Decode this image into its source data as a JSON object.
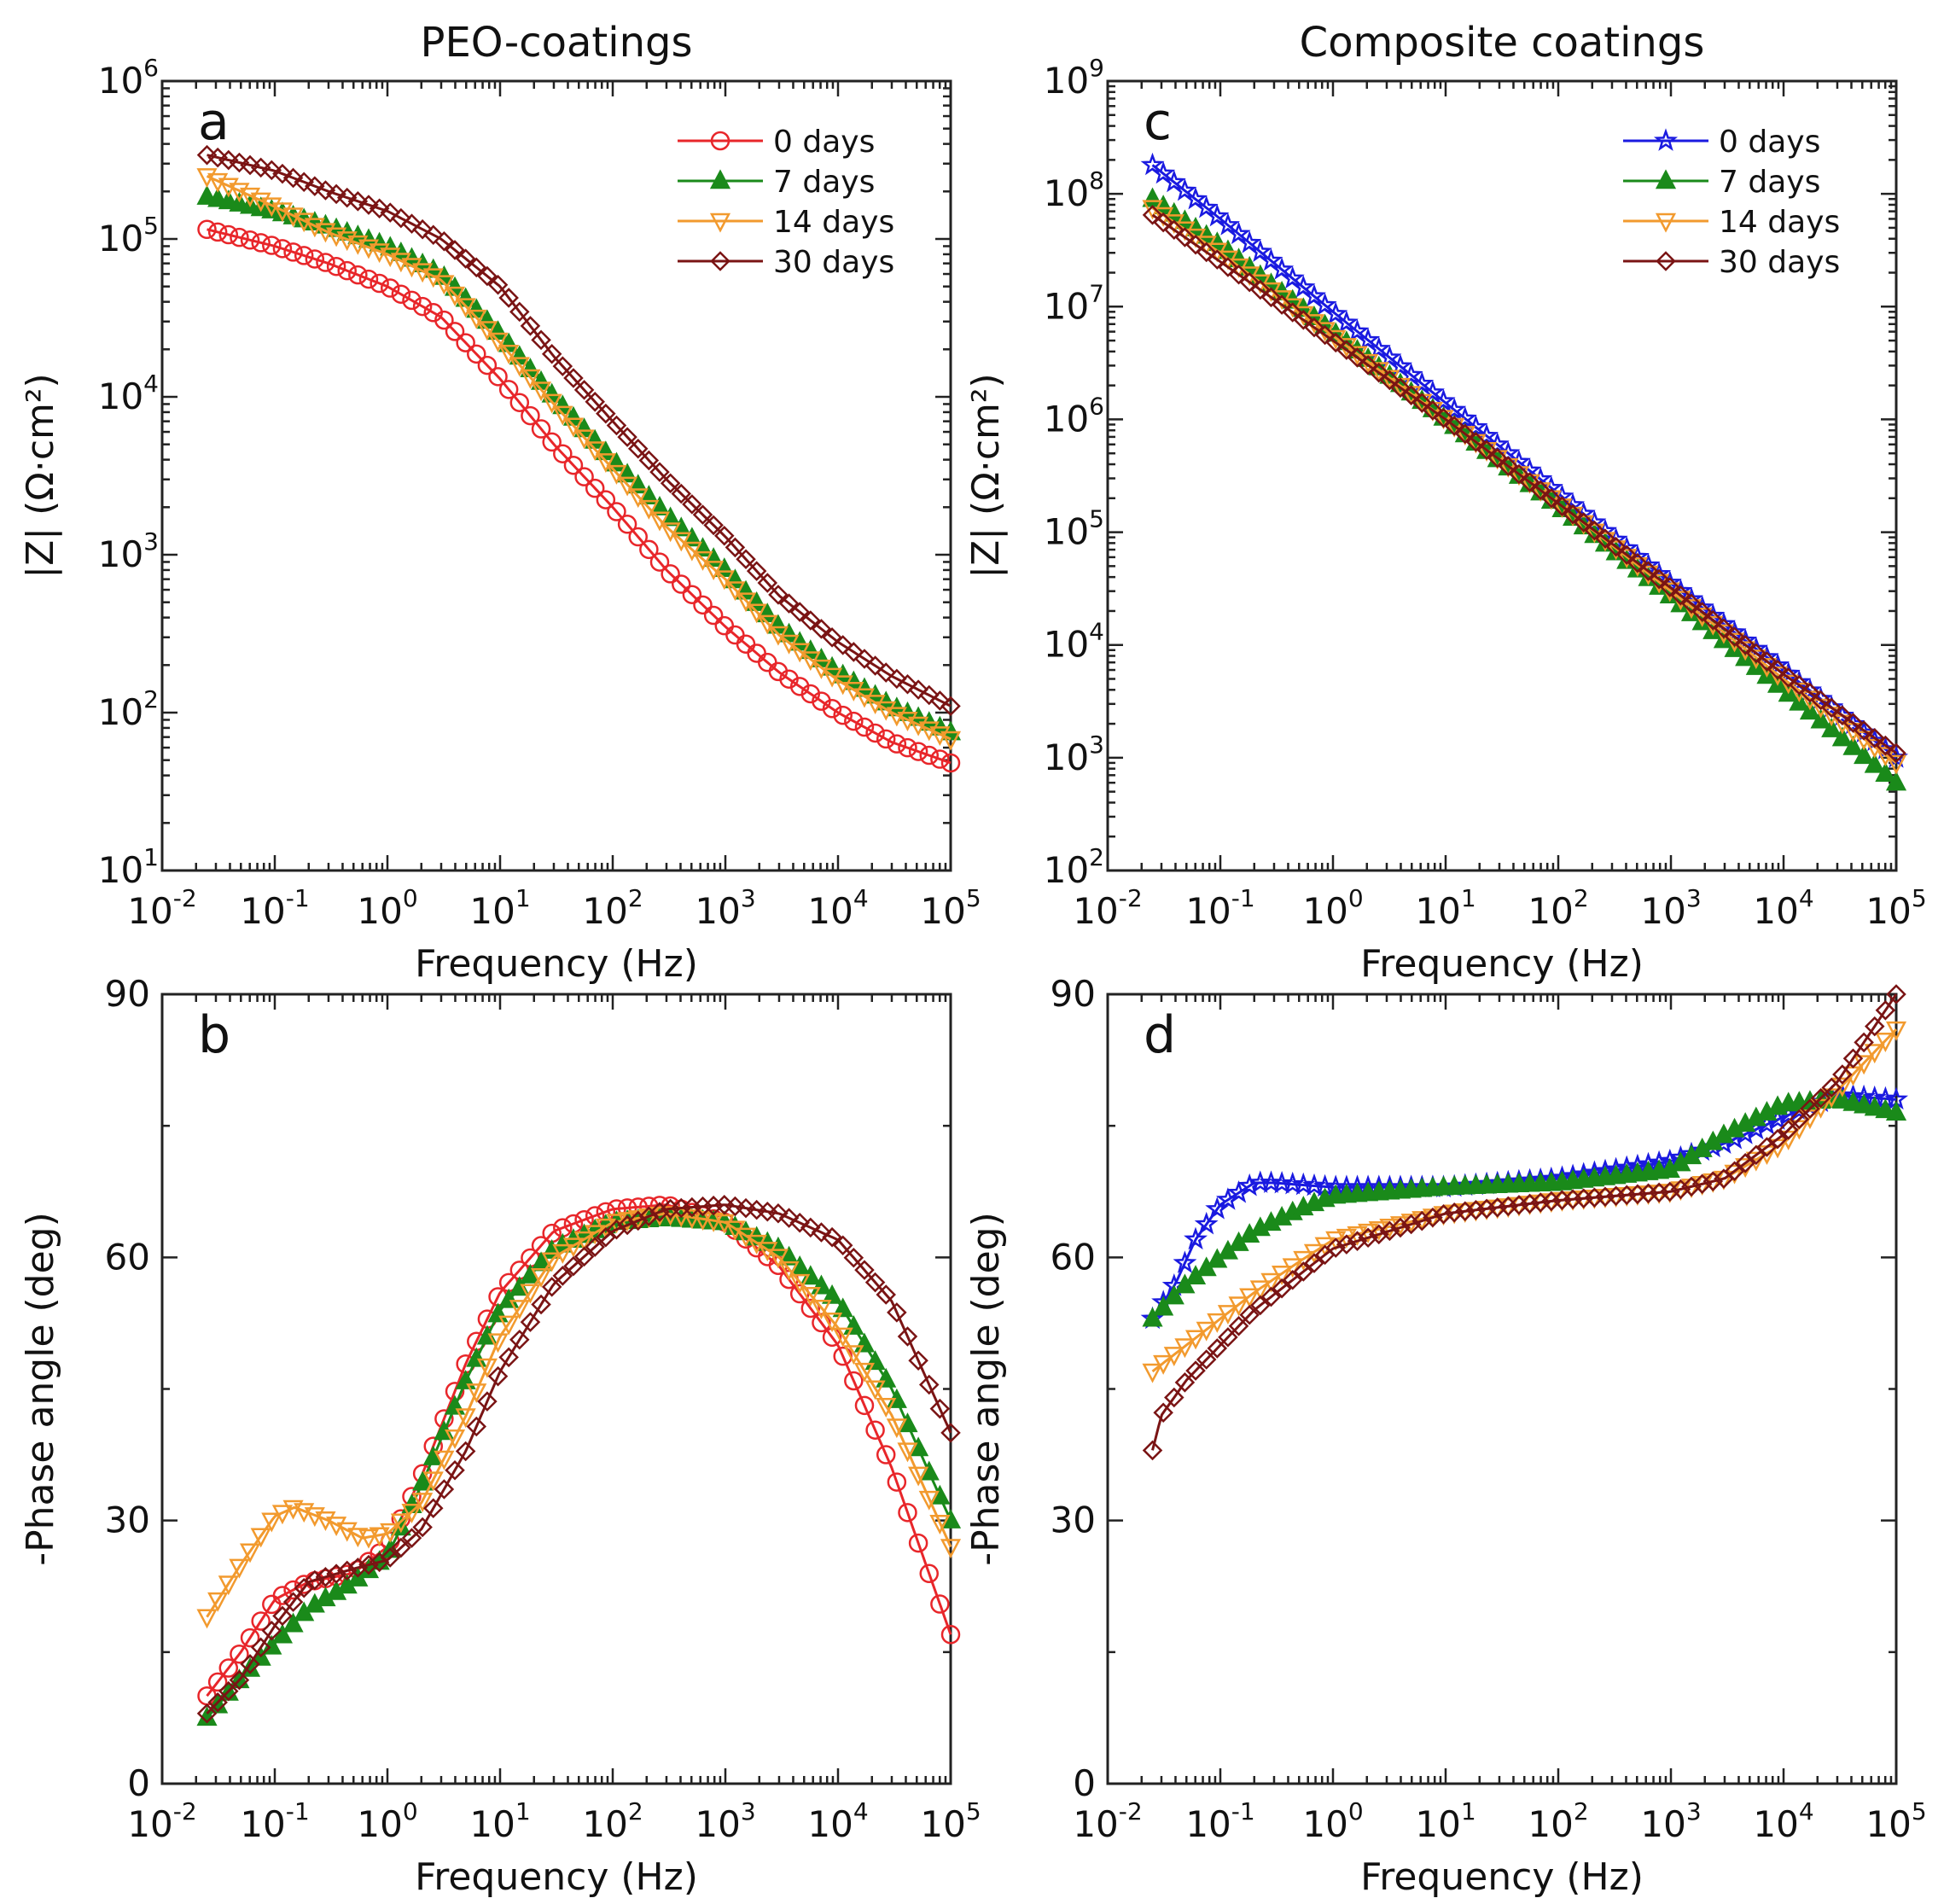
{
  "figure": {
    "titles": {
      "left": "PEO-coatings",
      "right": "Composite coatings"
    }
  },
  "colors": {
    "0 days (PEO)": "#e8262a",
    "0 days (composite)": "#1a1ae0",
    "7 days": "#1a8a1a",
    "14 days": "#f29a2e",
    "30 days": "#7a1414",
    "axis": "#222222"
  },
  "chart_data": [
    {
      "panel": "a",
      "type": "line",
      "title": "PEO-coatings",
      "xlabel": "Frequency (Hz)",
      "ylabel": "|Z| (Ω·cm²)",
      "xscale": "log",
      "yscale": "log",
      "xlim": [
        0.01,
        100000
      ],
      "ylim": [
        10,
        1000000
      ],
      "xticks": [
        {
          "base": "10",
          "exp": "-2"
        },
        {
          "base": "10",
          "exp": "-1"
        },
        {
          "base": "10",
          "exp": "0"
        },
        {
          "base": "10",
          "exp": "1"
        },
        {
          "base": "10",
          "exp": "2"
        },
        {
          "base": "10",
          "exp": "3"
        },
        {
          "base": "10",
          "exp": "4"
        },
        {
          "base": "10",
          "exp": "5"
        }
      ],
      "yticks": [
        {
          "base": "10",
          "exp": "1"
        },
        {
          "base": "10",
          "exp": "2"
        },
        {
          "base": "10",
          "exp": "3"
        },
        {
          "base": "10",
          "exp": "4"
        },
        {
          "base": "10",
          "exp": "5"
        },
        {
          "base": "10",
          "exp": "6"
        }
      ],
      "legend": "top-right",
      "series": [
        {
          "name": "0 days",
          "color": "#e8262a",
          "marker": "circle-open",
          "x": [
            0.025,
            0.1,
            0.3,
            1,
            3,
            10,
            30,
            100,
            300,
            1000,
            3000,
            10000,
            30000,
            100000
          ],
          "y": [
            115000,
            90000,
            70000,
            50000,
            32000,
            13000,
            5000,
            2000,
            800,
            350,
            180,
            100,
            65,
            48
          ]
        },
        {
          "name": "7 days",
          "color": "#1a8a1a",
          "marker": "triangle-up-filled",
          "x": [
            0.025,
            0.1,
            0.3,
            1,
            3,
            10,
            30,
            100,
            300,
            1000,
            3000,
            10000,
            30000,
            100000
          ],
          "y": [
            185000,
            150000,
            120000,
            90000,
            60000,
            25000,
            10000,
            4000,
            1800,
            800,
            350,
            180,
            110,
            75
          ]
        },
        {
          "name": "14 days",
          "color": "#f29a2e",
          "marker": "triangle-down-open",
          "x": [
            0.025,
            0.1,
            0.3,
            1,
            3,
            10,
            30,
            100,
            300,
            1000,
            3000,
            10000,
            30000,
            100000
          ],
          "y": [
            250000,
            160000,
            110000,
            80000,
            55000,
            22000,
            9000,
            3500,
            1500,
            700,
            310,
            160,
            100,
            68
          ]
        },
        {
          "name": "30 days",
          "color": "#7a1414",
          "marker": "diamond-open",
          "x": [
            0.025,
            0.1,
            0.3,
            1,
            3,
            10,
            30,
            100,
            300,
            1000,
            3000,
            10000,
            30000,
            100000
          ],
          "y": [
            340000,
            270000,
            200000,
            150000,
            100000,
            50000,
            18000,
            7000,
            3000,
            1300,
            550,
            280,
            170,
            110
          ]
        }
      ]
    },
    {
      "panel": "b",
      "type": "line",
      "xlabel": "Frequency (Hz)",
      "ylabel": "-Phase angle (deg)",
      "xscale": "log",
      "yscale": "linear",
      "xlim": [
        0.01,
        100000
      ],
      "ylim": [
        0,
        90
      ],
      "xticks": [
        {
          "base": "10",
          "exp": "-2"
        },
        {
          "base": "10",
          "exp": "-1"
        },
        {
          "base": "10",
          "exp": "0"
        },
        {
          "base": "10",
          "exp": "1"
        },
        {
          "base": "10",
          "exp": "2"
        },
        {
          "base": "10",
          "exp": "3"
        },
        {
          "base": "10",
          "exp": "4"
        },
        {
          "base": "10",
          "exp": "5"
        }
      ],
      "yticks": [
        {
          "base": "0",
          "exp": ""
        },
        {
          "base": "30",
          "exp": ""
        },
        {
          "base": "60",
          "exp": ""
        },
        {
          "base": "90",
          "exp": ""
        }
      ],
      "series": [
        {
          "name": "0 days",
          "color": "#e8262a",
          "marker": "circle-open",
          "x": [
            0.025,
            0.05,
            0.1,
            0.2,
            0.5,
            1,
            2,
            5,
            10,
            30,
            100,
            300,
            1000,
            3000,
            10000,
            30000,
            100000
          ],
          "y": [
            10,
            15,
            21,
            23,
            24,
            27,
            35,
            48,
            56,
            63,
            65.5,
            66,
            64,
            59,
            50,
            36,
            17
          ]
        },
        {
          "name": "7 days",
          "color": "#1a8a1a",
          "marker": "triangle-up-filled",
          "x": [
            0.025,
            0.05,
            0.1,
            0.2,
            0.5,
            1,
            2,
            5,
            10,
            30,
            100,
            300,
            1000,
            3000,
            10000,
            30000,
            100000
          ],
          "y": [
            7.5,
            12,
            16,
            20,
            23,
            26,
            34,
            46,
            54,
            61,
            64,
            64.5,
            64,
            61,
            55,
            45,
            30
          ]
        },
        {
          "name": "14 days",
          "color": "#f29a2e",
          "marker": "triangle-down-open",
          "x": [
            0.025,
            0.05,
            0.1,
            0.15,
            0.3,
            0.6,
            1,
            2,
            5,
            10,
            30,
            100,
            300,
            1000,
            3000,
            10000,
            30000,
            100000
          ],
          "y": [
            19,
            25,
            30.5,
            31.5,
            30,
            28,
            28.5,
            32,
            42,
            51,
            60,
            64,
            65,
            64,
            60,
            52,
            42,
            27
          ]
        },
        {
          "name": "30 days",
          "color": "#7a1414",
          "marker": "diamond-open",
          "x": [
            0.025,
            0.05,
            0.1,
            0.2,
            0.5,
            1,
            2,
            5,
            10,
            30,
            100,
            300,
            1000,
            3000,
            10000,
            30000,
            100000
          ],
          "y": [
            8,
            12,
            18,
            23,
            24.5,
            25.5,
            29,
            38,
            47,
            57,
            63,
            65.5,
            66,
            65,
            62,
            55,
            40
          ]
        }
      ]
    },
    {
      "panel": "c",
      "type": "line",
      "title": "Composite coatings",
      "xlabel": "Frequency (Hz)",
      "ylabel": "|Z| (Ω·cm²)",
      "xscale": "log",
      "yscale": "log",
      "xlim": [
        0.01,
        100000
      ],
      "ylim": [
        100,
        1000000000
      ],
      "xticks": [
        {
          "base": "10",
          "exp": "-2"
        },
        {
          "base": "10",
          "exp": "-1"
        },
        {
          "base": "10",
          "exp": "0"
        },
        {
          "base": "10",
          "exp": "1"
        },
        {
          "base": "10",
          "exp": "2"
        },
        {
          "base": "10",
          "exp": "3"
        },
        {
          "base": "10",
          "exp": "4"
        },
        {
          "base": "10",
          "exp": "5"
        }
      ],
      "yticks": [
        {
          "base": "10",
          "exp": "2"
        },
        {
          "base": "10",
          "exp": "3"
        },
        {
          "base": "10",
          "exp": "4"
        },
        {
          "base": "10",
          "exp": "5"
        },
        {
          "base": "10",
          "exp": "6"
        },
        {
          "base": "10",
          "exp": "7"
        },
        {
          "base": "10",
          "exp": "8"
        },
        {
          "base": "10",
          "exp": "9"
        }
      ],
      "legend": "top-right",
      "series": [
        {
          "name": "0 days",
          "color": "#1a1ae0",
          "marker": "star-open",
          "x": [
            0.025,
            0.1,
            1,
            10,
            100,
            1000,
            10000,
            100000
          ],
          "y": [
            180000000,
            60000000,
            9000000,
            1400000,
            220000,
            35000,
            6000,
            1000
          ]
        },
        {
          "name": "7 days",
          "color": "#1a8a1a",
          "marker": "triangle-up-filled",
          "x": [
            0.025,
            0.1,
            1,
            10,
            100,
            1000,
            10000,
            100000
          ],
          "y": [
            90000000,
            35000000,
            6000000,
            1000000,
            170000,
            27000,
            4000,
            600
          ]
        },
        {
          "name": "14 days",
          "color": "#f29a2e",
          "marker": "triangle-down-open",
          "x": [
            0.025,
            0.1,
            1,
            10,
            100,
            1000,
            10000,
            100000
          ],
          "y": [
            75000000,
            30000000,
            5500000,
            1000000,
            180000,
            30000,
            5000,
            900
          ]
        },
        {
          "name": "30 days",
          "color": "#7a1414",
          "marker": "diamond-open",
          "x": [
            0.025,
            0.1,
            1,
            10,
            100,
            1000,
            10000,
            100000
          ],
          "y": [
            65000000,
            25000000,
            5000000,
            1000000,
            180000,
            32000,
            5500,
            1100
          ]
        }
      ]
    },
    {
      "panel": "d",
      "type": "line",
      "xlabel": "Frequency (Hz)",
      "ylabel": "-Phase angle (deg)",
      "xscale": "log",
      "yscale": "linear",
      "xlim": [
        0.01,
        100000
      ],
      "ylim": [
        0,
        90
      ],
      "xticks": [
        {
          "base": "10",
          "exp": "-2"
        },
        {
          "base": "10",
          "exp": "-1"
        },
        {
          "base": "10",
          "exp": "0"
        },
        {
          "base": "10",
          "exp": "1"
        },
        {
          "base": "10",
          "exp": "2"
        },
        {
          "base": "10",
          "exp": "3"
        },
        {
          "base": "10",
          "exp": "4"
        },
        {
          "base": "10",
          "exp": "5"
        }
      ],
      "yticks": [
        {
          "base": "0",
          "exp": ""
        },
        {
          "base": "30",
          "exp": ""
        },
        {
          "base": "60",
          "exp": ""
        },
        {
          "base": "90",
          "exp": ""
        }
      ],
      "series": [
        {
          "name": "0 days",
          "color": "#1a1ae0",
          "marker": "star-open",
          "x": [
            0.025,
            0.04,
            0.06,
            0.1,
            0.2,
            0.3,
            1,
            10,
            100,
            1000,
            3000,
            10000,
            30000,
            100000
          ],
          "y": [
            53,
            57,
            62,
            66,
            68.5,
            68.5,
            68,
            68,
            69,
            71,
            73,
            76,
            78.5,
            78
          ]
        },
        {
          "name": "7 days",
          "color": "#1a8a1a",
          "marker": "triangle-up-filled",
          "x": [
            0.025,
            0.05,
            0.1,
            0.2,
            0.5,
            1,
            10,
            100,
            1000,
            3000,
            10000,
            30000,
            100000
          ],
          "y": [
            53,
            57,
            60,
            63,
            65.5,
            67,
            68,
            68.5,
            70,
            74,
            77.5,
            78,
            76.5
          ]
        },
        {
          "name": "14 days",
          "color": "#f29a2e",
          "marker": "triangle-down-open",
          "x": [
            0.025,
            0.05,
            0.1,
            0.2,
            0.5,
            1,
            10,
            100,
            1000,
            3000,
            10000,
            30000,
            100000
          ],
          "y": [
            47,
            50,
            53,
            56,
            59.5,
            62,
            65,
            66.5,
            67.5,
            69,
            73,
            79,
            86
          ]
        },
        {
          "name": "30 days",
          "color": "#7a1414",
          "marker": "diamond-open",
          "x": [
            0.025,
            0.03,
            0.05,
            0.1,
            0.2,
            0.5,
            1,
            10,
            100,
            1000,
            3000,
            10000,
            30000,
            100000
          ],
          "y": [
            38,
            42,
            46,
            50,
            54,
            58,
            61,
            65,
            66.5,
            67.5,
            69,
            74,
            80,
            90
          ]
        }
      ]
    }
  ]
}
